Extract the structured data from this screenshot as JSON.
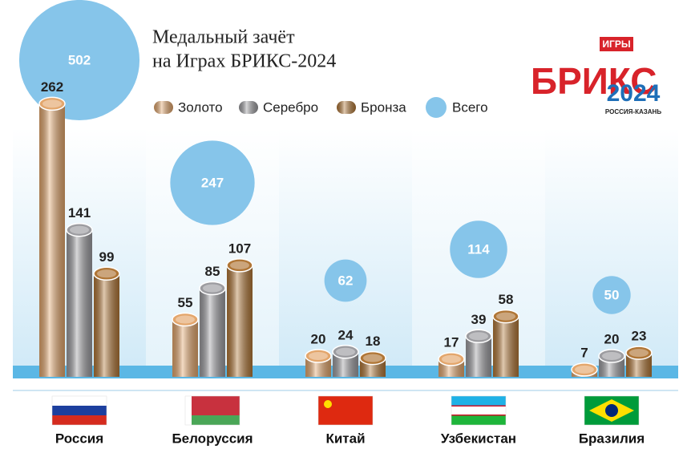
{
  "chart_data": {
    "type": "bar",
    "title": [
      "Медальный зачёт",
      "на Играх БРИКС-2024"
    ],
    "categories": [
      "Россия",
      "Белоруссия",
      "Китай",
      "Узбекистан",
      "Бразилия"
    ],
    "series": [
      {
        "name": "Золото",
        "color": "#e3a66c",
        "values": [
          262,
          55,
          20,
          17,
          7
        ]
      },
      {
        "name": "Серебро",
        "color": "#9c9ca0",
        "values": [
          141,
          85,
          24,
          39,
          20
        ]
      },
      {
        "name": "Бронза",
        "color": "#b07636",
        "values": [
          99,
          107,
          18,
          58,
          23
        ]
      }
    ],
    "total": {
      "name": "Всего",
      "color": "#86c5ea",
      "values": [
        502,
        247,
        62,
        114,
        50
      ]
    },
    "logo": {
      "name": "БРИКС",
      "badge": "ИГРЫ",
      "year": "2024",
      "place": "РОССИЯ-КАЗАНЬ"
    }
  }
}
